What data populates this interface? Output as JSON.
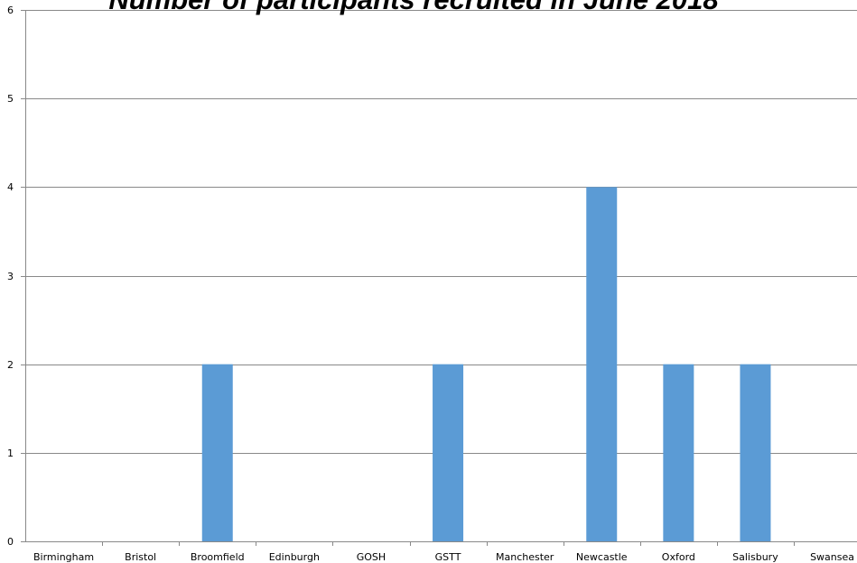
{
  "chart_data": {
    "type": "bar",
    "title": "Number of participants recruited in June 2018",
    "xlabel": "",
    "ylabel": "",
    "categories": [
      "Birmingham",
      "Bristol",
      "Broomfield",
      "Edinburgh",
      "GOSH",
      "GSTT",
      "Manchester",
      "Newcastle",
      "Oxford",
      "Salisbury",
      "Swansea"
    ],
    "values": [
      0,
      0,
      2,
      0,
      0,
      2,
      0,
      4,
      2,
      2,
      0
    ],
    "ylim": [
      0,
      6
    ],
    "yticks": [
      0,
      1,
      2,
      3,
      4,
      5,
      6
    ],
    "grid": true,
    "legend": "none",
    "bar_color": "#5b9bd5"
  }
}
